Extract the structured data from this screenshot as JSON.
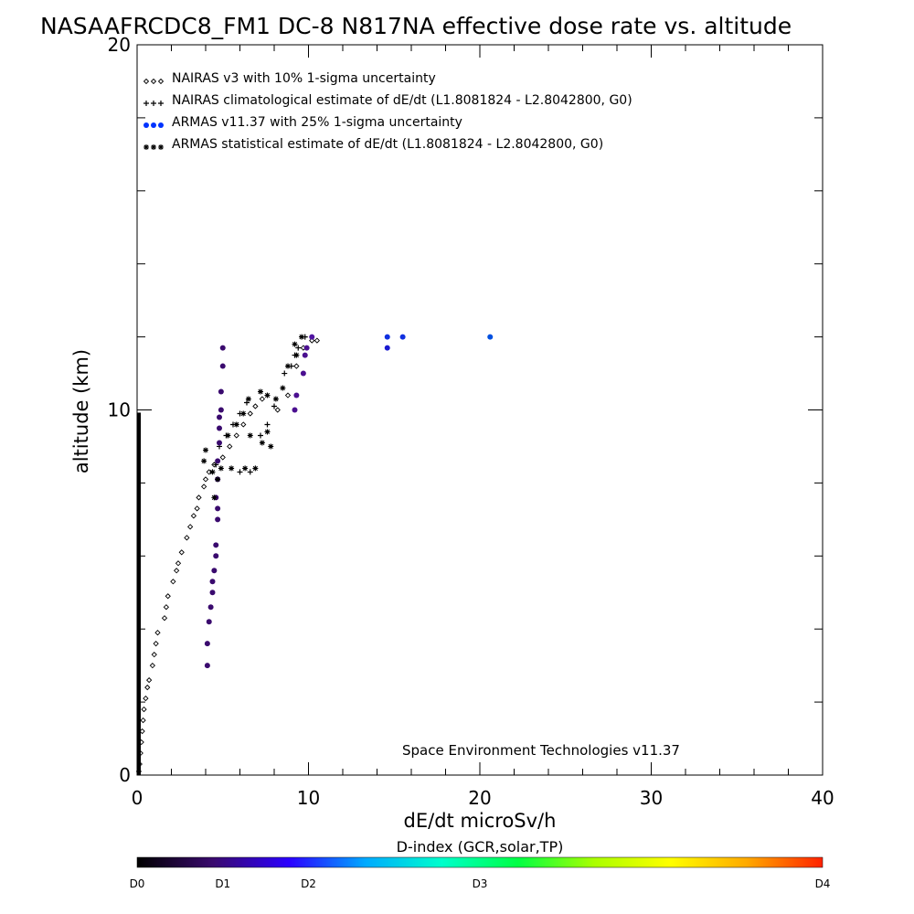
{
  "chart_data": {
    "type": "scatter",
    "title": "NASAAFRCDC8_FM1 DC-8   N817NA effective dose rate vs. altitude",
    "xlabel": "dE/dt microSv/h",
    "ylabel": "altitude (km)",
    "xlim": [
      0,
      40
    ],
    "ylim": [
      0,
      20
    ],
    "x_ticks": [
      "0",
      "10",
      "20",
      "30",
      "40"
    ],
    "y_ticks": [
      "0",
      "10",
      "20"
    ],
    "legend_position": "top-left",
    "annotation": "Space Environment Technologies v11.37",
    "colorbar": {
      "label": "D-index (GCR,solar,TP)",
      "ticks": [
        {
          "label": "D0",
          "value": 0
        },
        {
          "label": "D1",
          "value": 0.125
        },
        {
          "label": "D2",
          "value": 0.25
        },
        {
          "label": "D3",
          "value": 0.5
        },
        {
          "label": "D4",
          "value": 1
        }
      ],
      "colors": [
        "#000000",
        "#3a0a6e",
        "#2b00ff",
        "#00aaff",
        "#00ffcc",
        "#00ff44",
        "#aaff00",
        "#ffff00",
        "#ffaa00",
        "#ff2200"
      ]
    },
    "series": [
      {
        "name": "NAIRAS v3 with 10% 1-sigma uncertainty",
        "marker": "diamond",
        "color": "#000000",
        "points": [
          [
            0.1,
            0.1
          ],
          [
            0.15,
            0.3
          ],
          [
            0.2,
            0.6
          ],
          [
            0.25,
            0.9
          ],
          [
            0.3,
            1.2
          ],
          [
            0.35,
            1.5
          ],
          [
            0.4,
            1.8
          ],
          [
            0.5,
            2.1
          ],
          [
            0.6,
            2.4
          ],
          [
            0.7,
            2.6
          ],
          [
            0.9,
            3.0
          ],
          [
            1.0,
            3.3
          ],
          [
            1.1,
            3.6
          ],
          [
            1.2,
            3.9
          ],
          [
            1.6,
            4.3
          ],
          [
            1.7,
            4.6
          ],
          [
            1.8,
            4.9
          ],
          [
            2.1,
            5.3
          ],
          [
            2.3,
            5.6
          ],
          [
            2.4,
            5.8
          ],
          [
            2.6,
            6.1
          ],
          [
            2.9,
            6.5
          ],
          [
            3.1,
            6.8
          ],
          [
            3.3,
            7.1
          ],
          [
            3.5,
            7.3
          ],
          [
            3.6,
            7.6
          ],
          [
            3.9,
            7.9
          ],
          [
            4.0,
            8.1
          ],
          [
            4.2,
            8.3
          ],
          [
            4.5,
            8.5
          ],
          [
            5.0,
            8.7
          ],
          [
            5.4,
            9.0
          ],
          [
            5.8,
            9.3
          ],
          [
            6.2,
            9.6
          ],
          [
            6.6,
            9.9
          ],
          [
            6.9,
            10.1
          ],
          [
            7.3,
            10.3
          ],
          [
            8.2,
            10.0
          ],
          [
            8.8,
            10.4
          ],
          [
            9.3,
            11.2
          ],
          [
            9.7,
            11.7
          ],
          [
            10.2,
            11.9
          ],
          [
            10.5,
            11.9
          ]
        ]
      },
      {
        "name": "NAIRAS climatological estimate of dE/dt (L1.8081824 - L2.8042800, G0)",
        "marker": "plus",
        "color": "#000000",
        "points": [
          [
            4.6,
            8.5
          ],
          [
            4.8,
            9.0
          ],
          [
            5.2,
            9.3
          ],
          [
            5.6,
            9.6
          ],
          [
            6.0,
            9.9
          ],
          [
            6.4,
            10.2
          ],
          [
            7.2,
            9.3
          ],
          [
            7.6,
            9.6
          ],
          [
            8.0,
            10.1
          ],
          [
            8.6,
            11.0
          ],
          [
            9.0,
            11.2
          ],
          [
            9.2,
            11.5
          ],
          [
            9.4,
            11.7
          ],
          [
            9.8,
            12.0
          ],
          [
            6.0,
            8.3
          ],
          [
            6.6,
            8.3
          ]
        ]
      },
      {
        "name": "ARMAS v11.37 with 25% 1-sigma uncertainty",
        "marker": "dot",
        "color": "#0033ff",
        "points": [
          [
            4.1,
            3.0
          ],
          [
            4.1,
            3.6
          ],
          [
            4.2,
            4.2
          ],
          [
            4.3,
            4.6
          ],
          [
            4.4,
            5.0
          ],
          [
            4.4,
            5.3
          ],
          [
            4.5,
            5.6
          ],
          [
            4.6,
            6.0
          ],
          [
            4.6,
            6.3
          ],
          [
            4.7,
            7.0
          ],
          [
            4.7,
            7.3
          ],
          [
            4.6,
            7.6
          ],
          [
            4.7,
            8.1
          ],
          [
            4.7,
            8.6
          ],
          [
            4.8,
            9.1
          ],
          [
            4.8,
            9.5
          ],
          [
            4.8,
            9.8
          ],
          [
            4.9,
            10.0
          ],
          [
            4.9,
            10.5
          ],
          [
            5.0,
            11.2
          ],
          [
            5.0,
            11.7
          ],
          [
            9.2,
            10.0
          ],
          [
            9.3,
            10.4
          ],
          [
            9.7,
            11.0
          ],
          [
            9.8,
            11.5
          ],
          [
            9.9,
            11.7
          ],
          [
            10.2,
            12.0
          ],
          [
            14.6,
            11.7
          ],
          [
            14.6,
            12.0
          ],
          [
            15.5,
            12.0
          ],
          [
            20.6,
            12.0
          ]
        ],
        "point_colors": [
          "#3a0a6e",
          "#3a0a6e",
          "#3a0a6e",
          "#3a0a6e",
          "#3a0a6e",
          "#3a0a6e",
          "#3a0a6e",
          "#3a0a6e",
          "#3a0a6e",
          "#3a0a6e",
          "#3a0a6e",
          "#3a0a6e",
          "#3a0a6e",
          "#3a0a6e",
          "#3a0a6e",
          "#3a0a6e",
          "#3a0a6e",
          "#3a0a6e",
          "#3a0a6e",
          "#3a0a6e",
          "#3a0a6e",
          "#4b1090",
          "#4b1090",
          "#4b1090",
          "#4b1090",
          "#4b1090",
          "#5014a0",
          "#1a1ad0",
          "#1030e0",
          "#1030e0",
          "#0050e0"
        ]
      },
      {
        "name": "ARMAS statistical estimate of dE/dt (L1.8081824 - L2.8042800, G0)",
        "marker": "asterisk",
        "color": "#000000",
        "points": [
          [
            3.9,
            8.6
          ],
          [
            4.0,
            8.9
          ],
          [
            4.4,
            8.3
          ],
          [
            4.9,
            8.4
          ],
          [
            5.5,
            8.4
          ],
          [
            6.3,
            8.4
          ],
          [
            6.9,
            8.4
          ],
          [
            5.3,
            9.3
          ],
          [
            6.6,
            9.3
          ],
          [
            7.3,
            9.1
          ],
          [
            7.6,
            9.4
          ],
          [
            7.8,
            9.0
          ],
          [
            5.8,
            9.6
          ],
          [
            6.2,
            9.9
          ],
          [
            6.5,
            10.3
          ],
          [
            7.2,
            10.5
          ],
          [
            7.6,
            10.4
          ],
          [
            8.1,
            10.3
          ],
          [
            8.5,
            10.6
          ],
          [
            8.8,
            11.2
          ],
          [
            9.3,
            11.5
          ],
          [
            9.2,
            11.8
          ],
          [
            9.6,
            12.0
          ],
          [
            4.5,
            7.6
          ],
          [
            4.7,
            8.1
          ]
        ]
      },
      {
        "name": "",
        "marker": "baseline",
        "color": "#000000",
        "points": [
          [
            0,
            0
          ],
          [
            0,
            0.5
          ],
          [
            0,
            1
          ],
          [
            0,
            1.5
          ],
          [
            0,
            2
          ],
          [
            0,
            2.5
          ],
          [
            0,
            3
          ],
          [
            0,
            3.5
          ],
          [
            0,
            4
          ],
          [
            0,
            4.5
          ],
          [
            0,
            5
          ],
          [
            0,
            5.5
          ],
          [
            0,
            6
          ],
          [
            0,
            6.5
          ],
          [
            0,
            7
          ],
          [
            0,
            7.5
          ],
          [
            0,
            8
          ],
          [
            0,
            8.5
          ],
          [
            0,
            9
          ],
          [
            0,
            9.4
          ]
        ]
      }
    ]
  }
}
